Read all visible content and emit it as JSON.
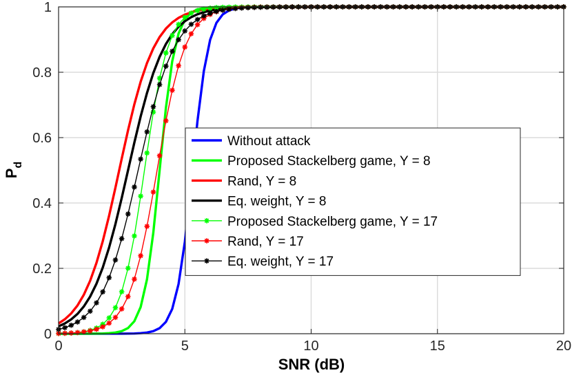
{
  "chart_data": {
    "type": "line",
    "xlabel": "SNR (dB)",
    "ylabel_main": "P",
    "ylabel_sub": "d",
    "xlim": [
      0,
      20
    ],
    "ylim": [
      0,
      1
    ],
    "xticks": [
      "0",
      "5",
      "10",
      "15",
      "20"
    ],
    "yticks": [
      "0",
      "0.2",
      "0.4",
      "0.6",
      "0.8",
      "1"
    ],
    "grid": true,
    "legend_position": "center-right",
    "x_step": 0.25,
    "series": [
      {
        "name": "Without attack",
        "color": "#0000ff",
        "marker": "none",
        "x0": 5.3,
        "s": 0.32
      },
      {
        "name": "Proposed Stackelberg game, Y = 8",
        "color": "#00ff00",
        "marker": "none",
        "x0": 4.0,
        "s": 0.31
      },
      {
        "name": "Rand, Y = 8",
        "color": "#ff0000",
        "marker": "none",
        "x0": 2.4,
        "s": 0.7
      },
      {
        "name": "Eq. weight, Y = 8",
        "color": "#000000",
        "marker": "none",
        "x0": 2.75,
        "s": 0.73
      },
      {
        "name": "Proposed Stackelberg game, Y = 17",
        "color": "#00ff00",
        "marker": "star",
        "x0": 3.4,
        "s": 0.47
      },
      {
        "name": "Rand, Y = 17",
        "color": "#ff0000",
        "marker": "star",
        "x0": 3.9,
        "s": 0.56
      },
      {
        "name": "Eq. weight, Y = 17",
        "color": "#000000",
        "marker": "star",
        "x0": 3.15,
        "s": 0.73
      }
    ]
  }
}
